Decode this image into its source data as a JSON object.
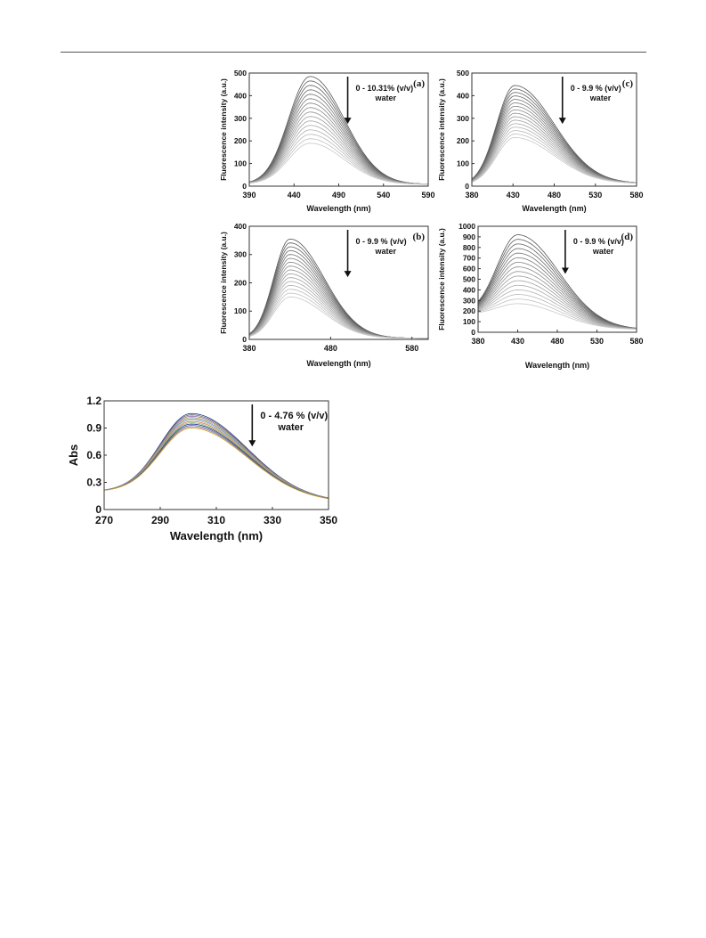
{
  "colors": {
    "frame": "#333333",
    "spectra_dark": "#555555",
    "spectra_light": "#c8c8c8",
    "abs_series": [
      "#1f3a93",
      "#6a6a6a",
      "#8a6fb0",
      "#c9a227",
      "#4f8fd6",
      "#b0b0b0",
      "#e07b39",
      "#7fbf7f"
    ]
  },
  "chart_data": [
    {
      "id": "a",
      "type": "line",
      "panel_label": "(a)",
      "xlabel": "Wavelength (nm)",
      "ylabel": "Fluorescence intensity (a.u.)",
      "xlim": [
        390,
        590
      ],
      "ylim": [
        0,
        500
      ],
      "xticks": [
        390,
        440,
        490,
        540,
        590
      ],
      "yticks": [
        0,
        100,
        200,
        300,
        400,
        500
      ],
      "annotation": [
        "0 - 10.31% (v/v)",
        "water"
      ],
      "arrow": "down",
      "curves": {
        "peak_x": 458,
        "peak_max": 485,
        "peak_min": 190,
        "count": 16,
        "start_y": 10,
        "end_y": 8,
        "w_left": 24,
        "w_right": 38
      }
    },
    {
      "id": "c",
      "type": "line",
      "panel_label": "(c)",
      "xlabel": "Wavelength (nm)",
      "ylabel": "Fluorescence intensity (a.u.)",
      "xlim": [
        380,
        580
      ],
      "ylim": [
        0,
        500
      ],
      "xticks": [
        380,
        430,
        480,
        530,
        580
      ],
      "yticks": [
        0,
        100,
        200,
        300,
        400,
        500
      ],
      "annotation": [
        "0 - 9.9 % (v/v)",
        "water"
      ],
      "arrow": "down",
      "curves": {
        "peak_x": 432,
        "peak_max": 445,
        "peak_min": 215,
        "count": 16,
        "start_y": 5,
        "end_y": 12,
        "w_left": 22,
        "w_right": 48
      }
    },
    {
      "id": "b",
      "type": "line",
      "panel_label": "(b)",
      "xlabel": "Wavelength (nm)",
      "ylabel": "Fluorescence intensity (a.u.)",
      "xlim": [
        380,
        600
      ],
      "ylim": [
        0,
        400
      ],
      "xticks": [
        380,
        480,
        580
      ],
      "yticks": [
        0,
        100,
        200,
        300,
        400
      ],
      "annotation": [
        "0 - 9.9 % (v/v)",
        "water"
      ],
      "arrow": "down",
      "curves": {
        "peak_x": 430,
        "peak_max": 355,
        "peak_min": 150,
        "count": 16,
        "start_y": 4,
        "end_y": 4,
        "w_left": 20,
        "w_right": 42
      }
    },
    {
      "id": "d",
      "type": "line",
      "panel_label": "(d)",
      "xlabel": "Wavelength (nm)",
      "ylabel": "Fluorescence intensity (a.u.)",
      "xlim": [
        380,
        580
      ],
      "ylim": [
        0,
        1000
      ],
      "xticks": [
        380,
        430,
        480,
        530,
        580
      ],
      "yticks": [
        0,
        100,
        200,
        300,
        400,
        500,
        600,
        700,
        800,
        900,
        1000
      ],
      "annotation": [
        "0 - 9.9 % (v/v)",
        "water"
      ],
      "arrow": "down",
      "curves": {
        "peak_x": 430,
        "peak_max": 920,
        "peak_min": 270,
        "count": 16,
        "start_y": 170,
        "end_y": 25,
        "w_left": 26,
        "w_right": 52
      }
    },
    {
      "id": "abs",
      "type": "line",
      "xlabel": "Wavelength (nm)",
      "ylabel": "Abs",
      "xlim": [
        270,
        350
      ],
      "ylim": [
        0,
        1.2
      ],
      "xticks": [
        270,
        290,
        310,
        330,
        350
      ],
      "yticks": [
        0,
        0.3,
        0.6,
        0.9,
        1.2
      ],
      "annotation": [
        "0 - 4.76 % (v/v)",
        "water"
      ],
      "arrow": "down",
      "curves": {
        "peak_x": 301,
        "peak_max": 1.06,
        "peak_min": 0.9,
        "count": 12,
        "start_y": 0.2,
        "end_y": 0.08,
        "w_left": 11,
        "w_right": 20
      }
    }
  ]
}
